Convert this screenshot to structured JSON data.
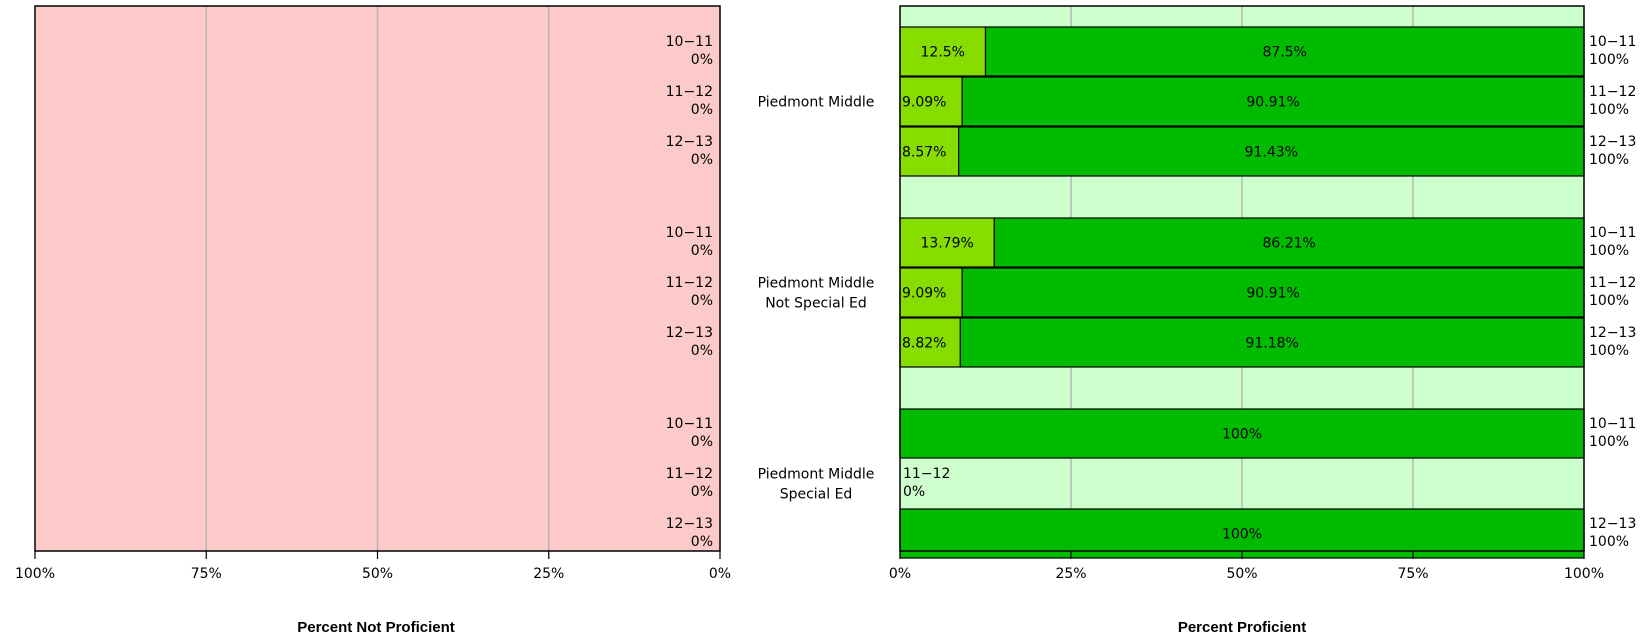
{
  "chart_data": [
    {
      "type": "bar",
      "orientation": "horizontal",
      "direction": "right-to-left",
      "xlabel": "Percent Not Proficient",
      "ylabel": "",
      "xlim": [
        0,
        100
      ],
      "xticks": [
        "100%",
        "75%",
        "50%",
        "25%",
        "0%"
      ],
      "grid": true,
      "background_color": "#fdcaca",
      "groups": [
        {
          "name": "Piedmont Middle",
          "bars": [
            {
              "year": "10-11",
              "total_label": "0%",
              "value": 0
            },
            {
              "year": "11-12",
              "total_label": "0%",
              "value": 0
            },
            {
              "year": "12-13",
              "total_label": "0%",
              "value": 0
            }
          ]
        },
        {
          "name": "Piedmont Middle Not Special Ed",
          "bars": [
            {
              "year": "10-11",
              "total_label": "0%",
              "value": 0
            },
            {
              "year": "11-12",
              "total_label": "0%",
              "value": 0
            },
            {
              "year": "12-13",
              "total_label": "0%",
              "value": 0
            }
          ]
        },
        {
          "name": "Piedmont Middle Special Ed",
          "bars": [
            {
              "year": "10-11",
              "total_label": "0%",
              "value": 0
            },
            {
              "year": "11-12",
              "total_label": "0%",
              "value": 0
            },
            {
              "year": "12-13",
              "total_label": "0%",
              "value": 0
            }
          ]
        }
      ]
    },
    {
      "type": "stacked-bar",
      "orientation": "horizontal",
      "xlabel": "Percent Proficient",
      "ylabel": "",
      "xlim": [
        0,
        100
      ],
      "xticks": [
        "0%",
        "25%",
        "50%",
        "75%",
        "100%"
      ],
      "grid": true,
      "background_color": "#ccffcc",
      "segment_colors": [
        "#88dd00",
        "#00bb00"
      ],
      "categories": [
        {
          "group": "Piedmont Middle",
          "year": "10-11",
          "total_label": "100%",
          "segments": [
            {
              "value": 12.5,
              "label": "12.5%"
            },
            {
              "value": 87.5,
              "label": "87.5%"
            }
          ]
        },
        {
          "group": "Piedmont Middle",
          "year": "11-12",
          "total_label": "100%",
          "segments": [
            {
              "value": 9.09,
              "label": "9.09%"
            },
            {
              "value": 90.91,
              "label": "90.91%"
            }
          ]
        },
        {
          "group": "Piedmont Middle",
          "year": "12-13",
          "total_label": "100%",
          "segments": [
            {
              "value": 8.57,
              "label": "8.57%"
            },
            {
              "value": 91.43,
              "label": "91.43%"
            }
          ]
        },
        {
          "group": "Piedmont Middle Not Special Ed",
          "year": "10-11",
          "total_label": "100%",
          "segments": [
            {
              "value": 13.79,
              "label": "13.79%"
            },
            {
              "value": 86.21,
              "label": "86.21%"
            }
          ]
        },
        {
          "group": "Piedmont Middle Not Special Ed",
          "year": "11-12",
          "total_label": "100%",
          "segments": [
            {
              "value": 9.09,
              "label": "9.09%"
            },
            {
              "value": 90.91,
              "label": "90.91%"
            }
          ]
        },
        {
          "group": "Piedmont Middle Not Special Ed",
          "year": "12-13",
          "total_label": "100%",
          "segments": [
            {
              "value": 8.82,
              "label": "8.82%"
            },
            {
              "value": 91.18,
              "label": "91.18%"
            }
          ]
        },
        {
          "group": "Piedmont Middle Special Ed",
          "year": "10-11",
          "total_label": "100%",
          "segments": [
            {
              "value": 0,
              "label": ""
            },
            {
              "value": 100,
              "label": "100%"
            }
          ]
        },
        {
          "group": "Piedmont Middle Special Ed",
          "year": "11-12",
          "total_label": "0%",
          "segments": [
            {
              "value": 0,
              "label": ""
            },
            {
              "value": 0,
              "label": ""
            }
          ]
        },
        {
          "group": "Piedmont Middle Special Ed",
          "year": "12-13",
          "total_label": "100%",
          "segments": [
            {
              "value": 0,
              "label": ""
            },
            {
              "value": 100,
              "label": "100%"
            }
          ]
        }
      ]
    }
  ],
  "group_labels": [
    [
      "Piedmont Middle"
    ],
    [
      "Piedmont Middle",
      "Not Special Ed"
    ],
    [
      "Piedmont Middle",
      "Special Ed"
    ]
  ]
}
